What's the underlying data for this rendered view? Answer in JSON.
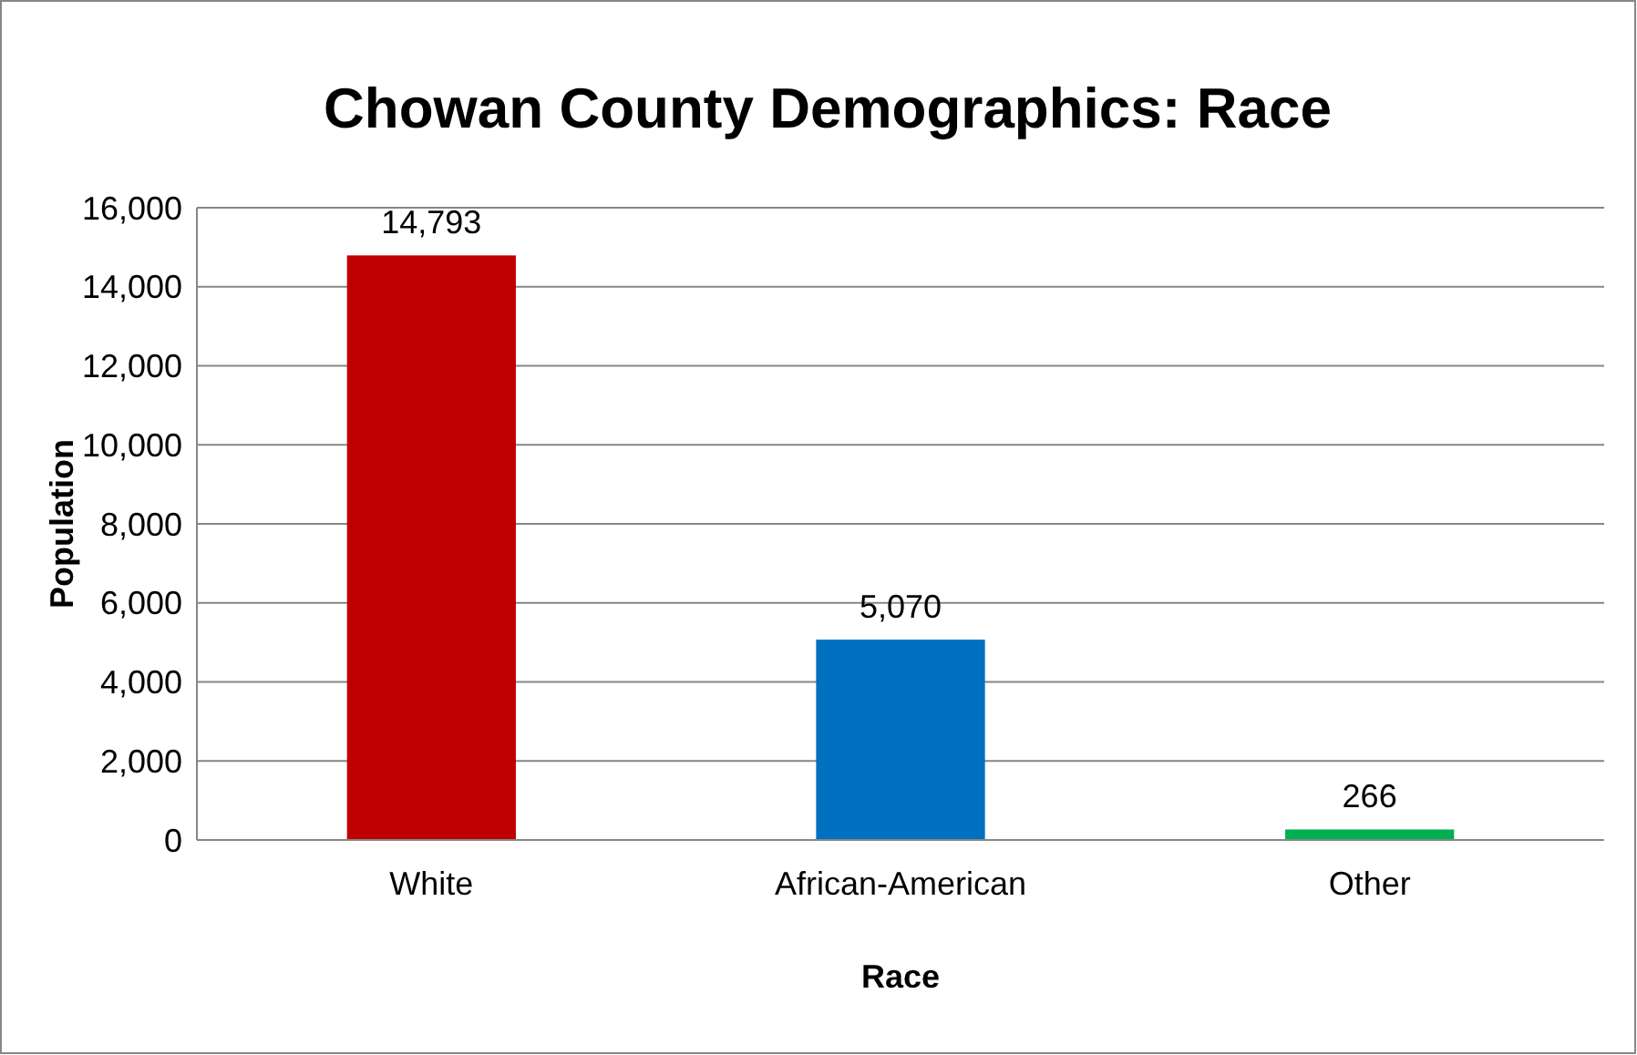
{
  "chart_data": {
    "type": "bar",
    "title": "Chowan County Demographics: Race",
    "xlabel": "Race",
    "ylabel": "Population",
    "categories": [
      "White",
      "African-American",
      "Other"
    ],
    "values": [
      14793,
      5070,
      266
    ],
    "colors": [
      "#c00000",
      "#0070c0",
      "#00b050"
    ],
    "ylim": [
      0,
      16000
    ],
    "yticks": [
      {
        "value": 0,
        "label": "0"
      },
      {
        "value": 2000,
        "label": "2,000"
      },
      {
        "value": 4000,
        "label": "4,000"
      },
      {
        "value": 6000,
        "label": "6,000"
      },
      {
        "value": 8000,
        "label": "8,000"
      },
      {
        "value": 10000,
        "label": "10,000"
      },
      {
        "value": 12000,
        "label": "12,000"
      },
      {
        "value": 14000,
        "label": "14,000"
      },
      {
        "value": 16000,
        "label": "16,000"
      }
    ],
    "value_labels": [
      "14,793",
      "5,070",
      "266"
    ],
    "grid": "y"
  }
}
